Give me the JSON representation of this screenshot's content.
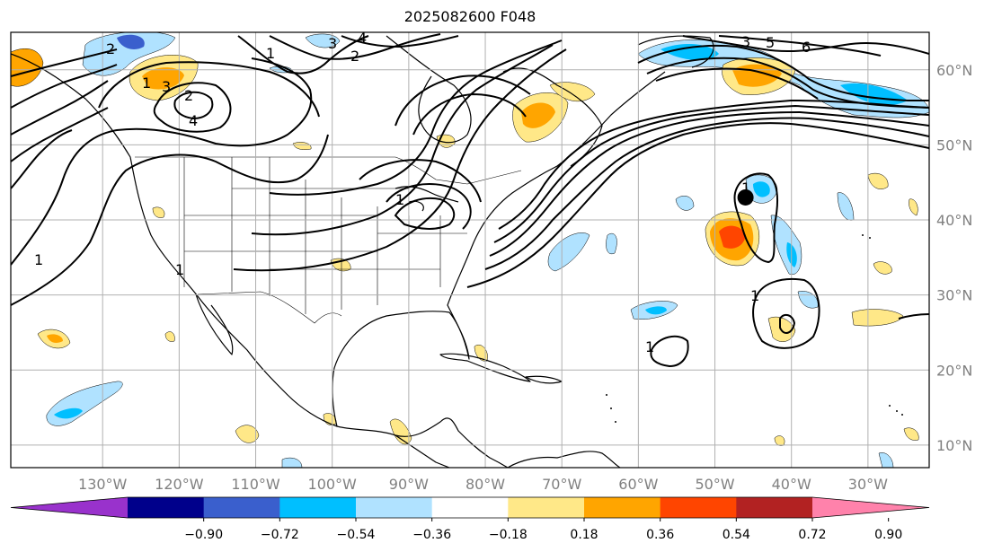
{
  "title": "2025082600 F048",
  "map": {
    "projection": "equirectangular",
    "lon_range": [
      -142,
      -22
    ],
    "lat_range": [
      7,
      65
    ],
    "longitude_labels": [
      "130°W",
      "120°W",
      "110°W",
      "100°W",
      "90°W",
      "80°W",
      "70°W",
      "60°W",
      "50°W",
      "40°W",
      "30°W"
    ],
    "longitude_values": [
      -130,
      -120,
      -110,
      -100,
      -90,
      -80,
      -70,
      -60,
      -50,
      -40,
      -30
    ],
    "latitude_labels": [
      "10°N",
      "20°N",
      "30°N",
      "40°N",
      "50°N",
      "60°N"
    ],
    "latitude_values": [
      10,
      20,
      30,
      40,
      50,
      60
    ],
    "marker": {
      "name": "storm-center-marker",
      "lon": -46,
      "lat": 43
    },
    "contour_labels": [
      "1",
      "1",
      "1",
      "2",
      "2",
      "3",
      "3",
      "4",
      "4",
      "5",
      "6",
      "3",
      "1",
      "1",
      "1",
      "1",
      "2",
      "1"
    ]
  },
  "colorbar": {
    "ticks": [
      "−0.90",
      "−0.72",
      "−0.54",
      "−0.36",
      "−0.18",
      "0.18",
      "0.36",
      "0.54",
      "0.72",
      "0.90"
    ],
    "colors": [
      "#9932cc",
      "#00008b",
      "#3a5fcd",
      "#00bfff",
      "#b0e2ff",
      "#ffffff",
      "#ffe888",
      "#ffa500",
      "#ff4500",
      "#b22222",
      "#ff82ab"
    ]
  }
}
